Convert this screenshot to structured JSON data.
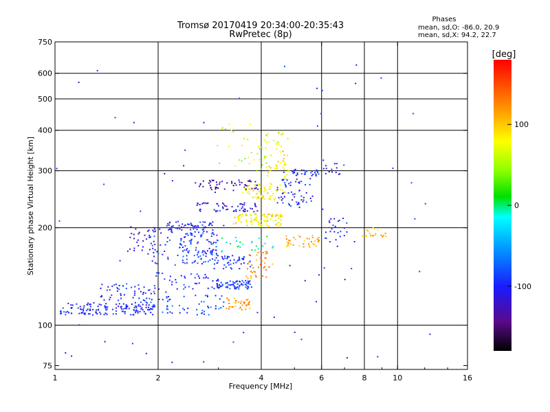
{
  "chart_data": {
    "type": "scatter",
    "title": "Tromsø 20170419 20:34:00-20:35:43",
    "subtitle": "RwPretec (8p)",
    "xlabel": "Frequency [MHz]",
    "ylabel": "Stationary phase Virtual Height [km]",
    "x_scale": "log",
    "y_scale": "log",
    "xlim": [
      1,
      16
    ],
    "ylim": [
      73,
      750
    ],
    "x_ticks": [
      1,
      2,
      4,
      6,
      8,
      10,
      16
    ],
    "x_tick_labels": [
      "1",
      "2",
      "4",
      "6",
      "8",
      "10",
      "16"
    ],
    "x_gridlines": [
      2,
      4,
      6,
      8,
      10
    ],
    "y_ticks": [
      75,
      100,
      200,
      300,
      400,
      500,
      600,
      750
    ],
    "y_tick_labels": [
      "75",
      "100",
      "200",
      "300",
      "400",
      "500",
      "600",
      "750"
    ],
    "y_gridlines": [
      100,
      200,
      300,
      400,
      500,
      600
    ],
    "grid": true,
    "phase_info": {
      "heading": "Phases",
      "line_o": "mean, sd,O: -86.0, 20.9",
      "line_x": "mean, sd,X:  94.2, 22.7"
    },
    "colorbar": {
      "label": "[deg]",
      "range": [
        -180,
        180
      ],
      "ticks": [
        100,
        0,
        -100
      ],
      "tick_labels": [
        "100",
        "0",
        "-100"
      ]
    },
    "clusters": [
      {
        "f0": 1.03,
        "f1": 1.95,
        "h0": 108,
        "h1": 118,
        "phase": -100,
        "n": 150
      },
      {
        "f0": 1.35,
        "f1": 1.95,
        "h0": 118,
        "h1": 135,
        "phase": -95,
        "n": 55
      },
      {
        "f0": 1.62,
        "f1": 1.98,
        "h0": 170,
        "h1": 205,
        "phase": -125,
        "n": 35
      },
      {
        "f0": 1.9,
        "f1": 2.3,
        "h0": 125,
        "h1": 210,
        "phase": -95,
        "n": 40
      },
      {
        "f0": 2.1,
        "f1": 2.9,
        "h0": 195,
        "h1": 210,
        "phase": -105,
        "n": 60
      },
      {
        "f0": 2.3,
        "f1": 3.0,
        "h0": 155,
        "h1": 195,
        "phase": -90,
        "n": 110
      },
      {
        "f0": 2.9,
        "f1": 3.7,
        "h0": 150,
        "h1": 165,
        "phase": -95,
        "n": 45
      },
      {
        "f0": 2.0,
        "f1": 3.1,
        "h0": 108,
        "h1": 125,
        "phase": -80,
        "n": 50
      },
      {
        "f0": 2.3,
        "f1": 3.0,
        "h0": 130,
        "h1": 145,
        "phase": -95,
        "n": 30
      },
      {
        "f0": 2.95,
        "f1": 3.75,
        "h0": 130,
        "h1": 138,
        "phase": -90,
        "n": 70
      },
      {
        "f0": 3.15,
        "f1": 3.75,
        "h0": 112,
        "h1": 122,
        "phase": 120,
        "n": 40
      },
      {
        "f0": 3.6,
        "f1": 4.3,
        "h0": 140,
        "h1": 170,
        "phase": 125,
        "n": 40
      },
      {
        "f0": 2.55,
        "f1": 3.9,
        "h0": 225,
        "h1": 240,
        "phase": -115,
        "n": 55
      },
      {
        "f0": 2.55,
        "f1": 3.9,
        "h0": 262,
        "h1": 282,
        "phase": -135,
        "n": 55
      },
      {
        "f0": 3.3,
        "f1": 4.6,
        "h0": 202,
        "h1": 222,
        "phase": 85,
        "n": 90
      },
      {
        "f0": 3.5,
        "f1": 4.7,
        "h0": 245,
        "h1": 275,
        "phase": 85,
        "n": 60
      },
      {
        "f0": 4.1,
        "f1": 4.8,
        "h0": 280,
        "h1": 400,
        "phase": 85,
        "n": 45
      },
      {
        "f0": 4.4,
        "f1": 5.7,
        "h0": 232,
        "h1": 285,
        "phase": -100,
        "n": 55
      },
      {
        "f0": 4.9,
        "f1": 5.9,
        "h0": 290,
        "h1": 305,
        "phase": -95,
        "n": 30
      },
      {
        "f0": 4.6,
        "f1": 5.9,
        "h0": 175,
        "h1": 190,
        "phase": 110,
        "n": 40
      },
      {
        "f0": 2.9,
        "f1": 4.6,
        "h0": 300,
        "h1": 420,
        "phase": 60,
        "n": 40
      },
      {
        "f0": 6.1,
        "f1": 7.1,
        "h0": 175,
        "h1": 215,
        "phase": -100,
        "n": 25
      },
      {
        "f0": 7.8,
        "f1": 9.3,
        "h0": 188,
        "h1": 202,
        "phase": 100,
        "n": 20
      },
      {
        "f0": 3.0,
        "f1": 4.4,
        "h0": 168,
        "h1": 190,
        "phase": -10,
        "n": 25
      },
      {
        "f0": 6.0,
        "f1": 6.8,
        "h0": 290,
        "h1": 330,
        "phase": -100,
        "n": 15
      },
      {
        "f0": 1.0,
        "f1": 12.5,
        "h0": 76,
        "h1": 650,
        "phase": -100,
        "n": 70
      }
    ]
  }
}
